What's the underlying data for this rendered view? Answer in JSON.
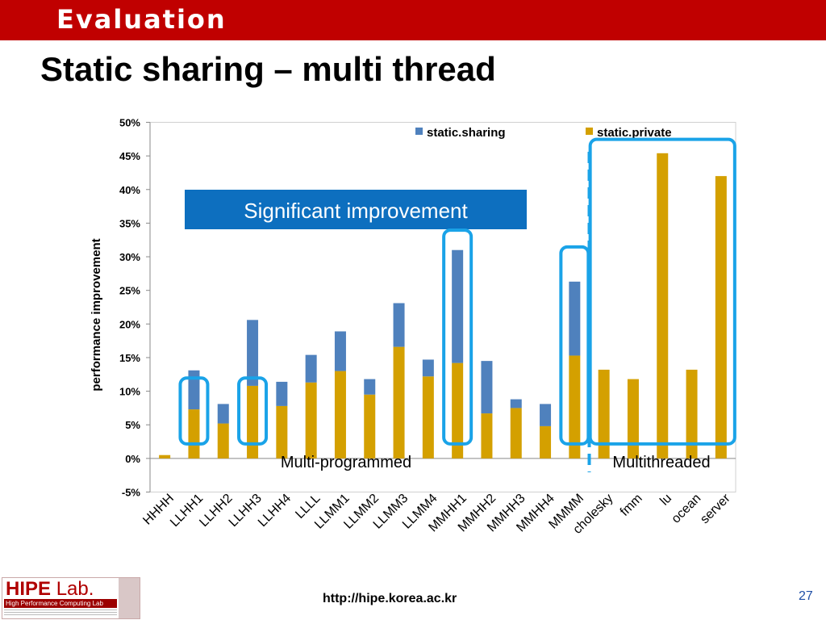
{
  "header": {
    "section": "Evaluation",
    "title": "Static sharing – multi thread"
  },
  "footer": {
    "url": "http://hipe.korea.ac.kr",
    "page": "27"
  },
  "logo": {
    "name": "HIPE",
    "suffix": "Lab.",
    "subtitle": "High Performance Computing Lab"
  },
  "colors": {
    "banner": "#c00000",
    "sharing": "#4f81bd",
    "private": "#d4a000",
    "highlight": "#1aa3e8",
    "callout": "#0d6fbf"
  },
  "annotations": {
    "callout": "Significant improvement",
    "multi_programmed": "Multi-programmed",
    "multithreaded": "Multithreaded"
  },
  "chart_data": {
    "type": "bar",
    "stacked": true,
    "ylabel": "performance improvement",
    "ylim": [
      -5,
      50
    ],
    "yticks": [
      "-5%",
      "0%",
      "5%",
      "10%",
      "15%",
      "20%",
      "25%",
      "30%",
      "35%",
      "40%",
      "45%",
      "50%"
    ],
    "legend_position": "top",
    "gridlines": false,
    "categories": [
      "HHHH",
      "LLHH1",
      "LLHH2",
      "LLHH3",
      "LLHH4",
      "LLLL",
      "LLMM1",
      "LLMM2",
      "LLMM3",
      "LLMM4",
      "MMHH1",
      "MMHH2",
      "MMHH3",
      "MMHH4",
      "MMMM",
      "cholesky",
      "fmm",
      "lu",
      "ocean",
      "server"
    ],
    "series": [
      {
        "name": "static.private",
        "values": [
          0.5,
          7.3,
          5.2,
          10.8,
          7.8,
          11.3,
          13.0,
          9.5,
          16.6,
          12.2,
          14.2,
          6.7,
          7.5,
          4.8,
          15.3,
          13.2,
          11.8,
          45.4,
          13.2,
          42.0
        ]
      },
      {
        "name": "static.sharing",
        "values": [
          0,
          5.8,
          2.9,
          9.8,
          3.6,
          4.1,
          5.9,
          2.3,
          6.5,
          2.5,
          16.8,
          7.8,
          1.3,
          3.3,
          11.0,
          0,
          0,
          0,
          0,
          0
        ]
      }
    ]
  }
}
